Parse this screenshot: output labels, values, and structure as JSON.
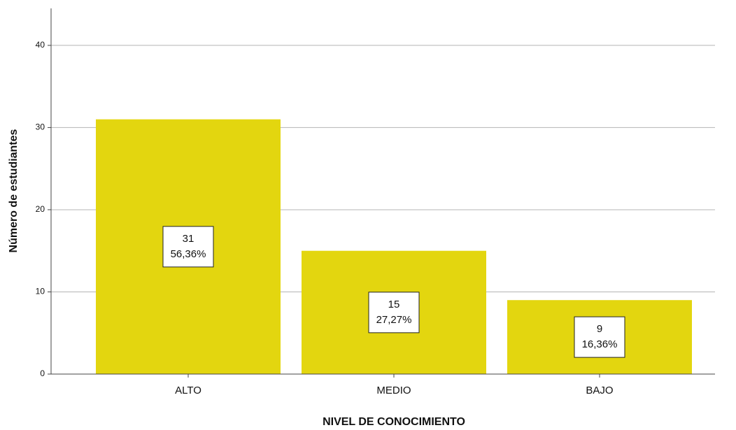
{
  "chart_data": {
    "type": "bar",
    "x_label": "NIVEL DE CONOCIMIENTO",
    "y_label": "Número de estudiantes",
    "categories": [
      "ALTO",
      "MEDIO",
      "BAJO"
    ],
    "values": [
      31,
      15,
      9
    ],
    "percentages": [
      56.36,
      27.27,
      16.36
    ],
    "percentage_labels": [
      "56,36%",
      "27,27%",
      "16,36%"
    ],
    "color": "#e3d60f",
    "ylim": [
      0,
      44.5
    ],
    "yticks": [
      0,
      10,
      20,
      30,
      40
    ],
    "grid": true
  }
}
